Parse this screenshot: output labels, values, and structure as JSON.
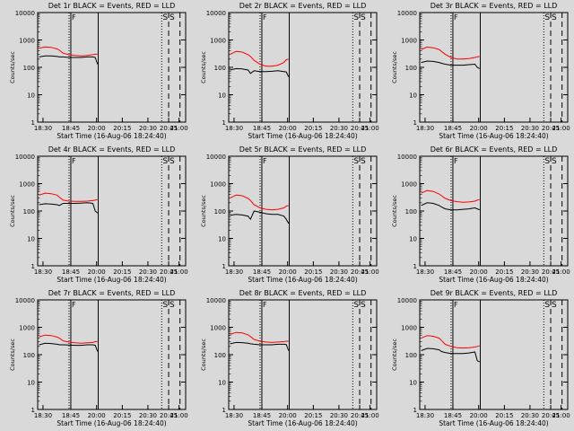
{
  "colors": {
    "background": "#d9d9d9",
    "events": "#000000",
    "lld": "#ff0000",
    "axes": "#000000"
  },
  "chart_data": [
    {
      "type": "line",
      "title": "Det 1r BLACK = Events, RED = LLD",
      "xlabel": "Start Time (16-Aug-06 18:24:40)",
      "ylabel": "Counts/sec",
      "yscale": "log",
      "ylim": [
        1,
        10000
      ],
      "yticks": [
        "1",
        "10",
        "100",
        "1000",
        "10000"
      ],
      "xlim": [
        "18:24",
        "21:10"
      ],
      "xticks": [
        "18:30",
        "18:45",
        "20:00",
        "20:15",
        "20:30",
        "20:45",
        "21:00"
      ],
      "annotations": [
        "F",
        "S",
        "S"
      ],
      "series": [
        {
          "x": [
            "18:25",
            "18:30",
            "18:35",
            "18:40",
            "18:42",
            "18:45",
            "18:50",
            "18:55",
            "19:00",
            "19:05",
            "19:10",
            "19:12",
            "19:14"
          ],
          "values": [
            240,
            260,
            260,
            250,
            240,
            240,
            230,
            230,
            230,
            240,
            240,
            230,
            130
          ]
        },
        {
          "x": [
            "18:25",
            "18:30",
            "18:35",
            "18:40",
            "18:42",
            "18:45",
            "18:50",
            "18:55",
            "19:00",
            "19:05",
            "19:10",
            "19:12",
            "19:14"
          ],
          "values": [
            500,
            560,
            540,
            470,
            420,
            330,
            290,
            270,
            260,
            270,
            290,
            300,
            300
          ]
        }
      ]
    },
    {
      "type": "line",
      "title": "Det 2r BLACK = Events, RED = LLD",
      "xlabel": "Start Time (16-Aug-06 18:24:40)",
      "ylabel": "Counts/sec",
      "yscale": "log",
      "ylim": [
        1,
        10000
      ],
      "yticks": [
        "1",
        "10",
        "100",
        "1000",
        "10000"
      ],
      "xlim": [
        "18:24",
        "21:10"
      ],
      "xticks": [
        "18:30",
        "18:45",
        "20:00",
        "20:15",
        "20:30",
        "20:45",
        "21:00"
      ],
      "annotations": [
        "F",
        "S",
        "S"
      ],
      "series": [
        {
          "x": [
            "18:25",
            "18:30",
            "18:35",
            "18:40",
            "18:42",
            "18:45",
            "18:50",
            "18:55",
            "19:00",
            "19:05",
            "19:10",
            "19:12",
            "19:14"
          ],
          "values": [
            80,
            90,
            88,
            80,
            60,
            75,
            70,
            70,
            72,
            75,
            70,
            68,
            45
          ]
        },
        {
          "x": [
            "18:25",
            "18:30",
            "18:35",
            "18:40",
            "18:42",
            "18:45",
            "18:50",
            "18:55",
            "19:00",
            "19:05",
            "19:10",
            "19:12",
            "19:14"
          ],
          "values": [
            300,
            380,
            360,
            290,
            250,
            180,
            130,
            110,
            110,
            120,
            150,
            190,
            200
          ]
        }
      ]
    },
    {
      "type": "line",
      "title": "Det 3r BLACK = Events, RED = LLD",
      "xlabel": "Start Time (16-Aug-06 18:24:40)",
      "ylabel": "Counts/sec",
      "yscale": "log",
      "ylim": [
        1,
        10000
      ],
      "yticks": [
        "1",
        "10",
        "100",
        "1000",
        "10000"
      ],
      "xlim": [
        "18:24",
        "21:10"
      ],
      "xticks": [
        "18:30",
        "18:45",
        "20:00",
        "20:15",
        "20:30",
        "20:45",
        "21:00"
      ],
      "annotations": [
        "F",
        "S",
        "S"
      ],
      "series": [
        {
          "x": [
            "18:25",
            "18:30",
            "18:35",
            "18:40",
            "18:42",
            "18:45",
            "18:50",
            "18:55",
            "19:00",
            "19:05",
            "19:10",
            "19:12",
            "19:14"
          ],
          "values": [
            150,
            170,
            165,
            150,
            140,
            130,
            120,
            120,
            120,
            125,
            130,
            100,
            90
          ]
        },
        {
          "x": [
            "18:25",
            "18:30",
            "18:35",
            "18:40",
            "18:42",
            "18:45",
            "18:50",
            "18:55",
            "19:00",
            "19:05",
            "19:10",
            "19:12",
            "19:14"
          ],
          "values": [
            450,
            550,
            520,
            450,
            380,
            300,
            230,
            200,
            200,
            210,
            230,
            240,
            250
          ]
        }
      ]
    },
    {
      "type": "line",
      "title": "Det 4r BLACK = Events, RED = LLD",
      "xlabel": "Start Time (16-Aug-06 18:24:40)",
      "ylabel": "Counts/sec",
      "yscale": "log",
      "ylim": [
        1,
        10000
      ],
      "yticks": [
        "1",
        "10",
        "100",
        "1000",
        "10000"
      ],
      "xlim": [
        "18:24",
        "21:10"
      ],
      "xticks": [
        "18:30",
        "18:45",
        "20:00",
        "20:15",
        "20:30",
        "20:45",
        "21:00"
      ],
      "annotations": [
        "F",
        "S",
        "S"
      ],
      "series": [
        {
          "x": [
            "18:25",
            "18:30",
            "18:35",
            "18:40",
            "18:42",
            "18:45",
            "18:50",
            "18:55",
            "19:00",
            "19:05",
            "19:10",
            "19:12",
            "19:14"
          ],
          "values": [
            170,
            185,
            180,
            170,
            160,
            190,
            190,
            190,
            195,
            200,
            190,
            100,
            85
          ]
        },
        {
          "x": [
            "18:25",
            "18:30",
            "18:35",
            "18:40",
            "18:42",
            "18:45",
            "18:50",
            "18:55",
            "19:00",
            "19:05",
            "19:10",
            "19:12",
            "19:14"
          ],
          "values": [
            380,
            450,
            430,
            380,
            320,
            250,
            230,
            225,
            225,
            230,
            240,
            250,
            260
          ]
        }
      ]
    },
    {
      "type": "line",
      "title": "Det 5r BLACK = Events, RED = LLD",
      "xlabel": "Start Time (16-Aug-06 18:24:40)",
      "ylabel": "Counts/sec",
      "yscale": "log",
      "ylim": [
        1,
        10000
      ],
      "yticks": [
        "1",
        "10",
        "100",
        "1000",
        "10000"
      ],
      "xlim": [
        "18:24",
        "21:10"
      ],
      "xticks": [
        "18:30",
        "18:45",
        "20:00",
        "20:15",
        "20:30",
        "20:45",
        "21:00"
      ],
      "annotations": [
        "F",
        "S",
        "S"
      ],
      "series": [
        {
          "x": [
            "18:25",
            "18:30",
            "18:35",
            "18:40",
            "18:42",
            "18:45",
            "18:50",
            "18:55",
            "19:00",
            "19:05",
            "19:10",
            "19:12",
            "19:14"
          ],
          "values": [
            70,
            75,
            72,
            65,
            50,
            100,
            90,
            80,
            75,
            75,
            65,
            50,
            35
          ]
        },
        {
          "x": [
            "18:25",
            "18:30",
            "18:35",
            "18:40",
            "18:42",
            "18:45",
            "18:50",
            "18:55",
            "19:00",
            "19:05",
            "19:10",
            "19:12",
            "19:14"
          ],
          "values": [
            300,
            380,
            360,
            290,
            240,
            170,
            130,
            115,
            110,
            115,
            130,
            150,
            160
          ]
        }
      ]
    },
    {
      "type": "line",
      "title": "Det 6r BLACK = Events, RED = LLD",
      "xlabel": "Start Time (16-Aug-06 18:24:40)",
      "ylabel": "Counts/sec",
      "yscale": "log",
      "ylim": [
        1,
        10000
      ],
      "yticks": [
        "1",
        "10",
        "100",
        "1000",
        "10000"
      ],
      "xlim": [
        "18:24",
        "21:10"
      ],
      "xticks": [
        "18:30",
        "18:45",
        "20:00",
        "20:15",
        "20:30",
        "20:45",
        "21:00"
      ],
      "annotations": [
        "F",
        "S",
        "S"
      ],
      "series": [
        {
          "x": [
            "18:25",
            "18:30",
            "18:35",
            "18:40",
            "18:42",
            "18:45",
            "18:50",
            "18:55",
            "19:00",
            "19:05",
            "19:10",
            "19:12",
            "19:14"
          ],
          "values": [
            160,
            200,
            190,
            160,
            140,
            120,
            110,
            110,
            115,
            120,
            130,
            120,
            110
          ]
        },
        {
          "x": [
            "18:25",
            "18:30",
            "18:35",
            "18:40",
            "18:42",
            "18:45",
            "18:50",
            "18:55",
            "19:00",
            "19:05",
            "19:10",
            "19:12",
            "19:14"
          ],
          "values": [
            450,
            560,
            520,
            420,
            360,
            290,
            240,
            220,
            210,
            215,
            230,
            250,
            260
          ]
        }
      ]
    },
    {
      "type": "line",
      "title": "Det 7r BLACK = Events, RED = LLD",
      "xlabel": "Start Time (16-Aug-06 18:24:40)",
      "ylabel": "Counts/sec",
      "yscale": "log",
      "ylim": [
        1,
        10000
      ],
      "yticks": [
        "1",
        "10",
        "100",
        "1000",
        "10000"
      ],
      "xlim": [
        "18:24",
        "21:10"
      ],
      "xticks": [
        "18:30",
        "18:45",
        "20:00",
        "20:15",
        "20:30",
        "20:45",
        "21:00"
      ],
      "annotations": [
        "F",
        "S",
        "S"
      ],
      "series": [
        {
          "x": [
            "18:25",
            "18:30",
            "18:35",
            "18:40",
            "18:42",
            "18:45",
            "18:50",
            "18:55",
            "19:00",
            "19:05",
            "19:10",
            "19:12",
            "19:14"
          ],
          "values": [
            230,
            260,
            255,
            240,
            230,
            230,
            225,
            220,
            220,
            230,
            230,
            220,
            130
          ]
        },
        {
          "x": [
            "18:25",
            "18:30",
            "18:35",
            "18:40",
            "18:42",
            "18:45",
            "18:50",
            "18:55",
            "19:00",
            "19:05",
            "19:10",
            "19:12",
            "19:14"
          ],
          "values": [
            450,
            520,
            500,
            440,
            400,
            320,
            290,
            270,
            260,
            270,
            280,
            300,
            300
          ]
        }
      ]
    },
    {
      "type": "line",
      "title": "Det 8r BLACK = Events, RED = LLD",
      "xlabel": "Start Time (16-Aug-06 18:24:40)",
      "ylabel": "Counts/sec",
      "yscale": "log",
      "ylim": [
        1,
        10000
      ],
      "yticks": [
        "1",
        "10",
        "100",
        "1000",
        "10000"
      ],
      "xlim": [
        "18:24",
        "21:10"
      ],
      "xticks": [
        "18:30",
        "18:45",
        "20:00",
        "20:15",
        "20:30",
        "20:45",
        "21:00"
      ],
      "annotations": [
        "F",
        "S",
        "S"
      ],
      "series": [
        {
          "x": [
            "18:25",
            "18:30",
            "18:35",
            "18:40",
            "18:42",
            "18:45",
            "18:50",
            "18:55",
            "19:00",
            "19:05",
            "19:10",
            "19:12",
            "19:14"
          ],
          "values": [
            250,
            280,
            275,
            260,
            250,
            240,
            230,
            230,
            230,
            240,
            240,
            235,
            140
          ]
        },
        {
          "x": [
            "18:25",
            "18:30",
            "18:35",
            "18:40",
            "18:42",
            "18:45",
            "18:50",
            "18:55",
            "19:00",
            "19:05",
            "19:10",
            "19:12",
            "19:14"
          ],
          "values": [
            550,
            650,
            620,
            530,
            460,
            360,
            310,
            290,
            280,
            290,
            300,
            310,
            310
          ]
        }
      ]
    },
    {
      "type": "line",
      "title": "Det 9r BLACK = Events, RED = LLD",
      "xlabel": "Start Time (16-Aug-06 18:24:40)",
      "ylabel": "Counts/sec",
      "yscale": "log",
      "ylim": [
        1,
        10000
      ],
      "yticks": [
        "1",
        "10",
        "100",
        "1000",
        "10000"
      ],
      "xlim": [
        "18:24",
        "21:10"
      ],
      "xticks": [
        "18:30",
        "18:45",
        "20:00",
        "20:15",
        "20:30",
        "20:45",
        "21:00"
      ],
      "annotations": [
        "F",
        "S",
        "S"
      ],
      "series": [
        {
          "x": [
            "18:25",
            "18:30",
            "18:35",
            "18:40",
            "18:42",
            "18:45",
            "18:50",
            "18:55",
            "19:00",
            "19:05",
            "19:10",
            "19:12",
            "19:14"
          ],
          "values": [
            140,
            170,
            165,
            150,
            130,
            120,
            110,
            110,
            110,
            115,
            125,
            60,
            55
          ]
        },
        {
          "x": [
            "18:25",
            "18:30",
            "18:35",
            "18:40",
            "18:42",
            "18:45",
            "18:50",
            "18:55",
            "19:00",
            "19:05",
            "19:10",
            "19:12",
            "19:14"
          ],
          "values": [
            400,
            500,
            470,
            400,
            330,
            240,
            200,
            180,
            175,
            180,
            190,
            200,
            210
          ]
        }
      ]
    }
  ]
}
